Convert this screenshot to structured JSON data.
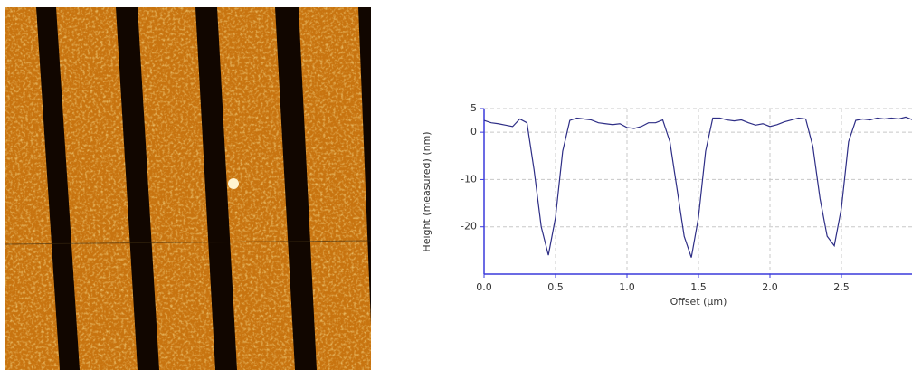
{
  "chart_data": {
    "type": "line",
    "x_label": "Offset (µm)",
    "y_label": "Height (measured) (nm)",
    "x": [
      0,
      0.05,
      0.1,
      0.15,
      0.2,
      0.25,
      0.3,
      0.35,
      0.4,
      0.45,
      0.5,
      0.55,
      0.6,
      0.65,
      0.7,
      0.75,
      0.8,
      0.85,
      0.9,
      0.95,
      1.0,
      1.05,
      1.1,
      1.15,
      1.2,
      1.25,
      1.3,
      1.35,
      1.4,
      1.45,
      1.5,
      1.55,
      1.6,
      1.65,
      1.7,
      1.75,
      1.8,
      1.85,
      1.9,
      1.95,
      2.0,
      2.05,
      2.1,
      2.15,
      2.2,
      2.25,
      2.3,
      2.35,
      2.4,
      2.45,
      2.5,
      2.55,
      2.6,
      2.65,
      2.7,
      2.75,
      2.8,
      2.85,
      2.9,
      2.95,
      3.0
    ],
    "series": [
      {
        "color": "#2e2e86",
        "values": [
          2.5,
          2,
          1.8,
          1.5,
          1.2,
          2.8,
          2,
          -8,
          -20,
          -26,
          -18,
          -4,
          2.5,
          3,
          2.8,
          2.6,
          2,
          1.8,
          1.6,
          1.8,
          1,
          0.8,
          1.2,
          2,
          2,
          2.6,
          -2,
          -12,
          -22,
          -26.5,
          -18,
          -4,
          3,
          3,
          2.6,
          2.4,
          2.6,
          2,
          1.5,
          1.8,
          1.2,
          1.6,
          2.2,
          2.6,
          3,
          2.8,
          -3,
          -14,
          -22,
          -24,
          -16,
          -2,
          2.5,
          2.8,
          2.6,
          3,
          2.8,
          3,
          2.8,
          3.2,
          2.6
        ]
      }
    ],
    "xlim": [
      0,
      3
    ],
    "ylim": [
      -30,
      5
    ],
    "xticks": [
      {
        "value": 0,
        "label": "0.0"
      },
      0.5,
      {
        "value": 1,
        "label": "1.0"
      },
      1.5,
      {
        "value": 2,
        "label": "2.0"
      },
      2.5
    ],
    "yticks": [
      5,
      0,
      -10,
      -20
    ],
    "grid": true
  }
}
